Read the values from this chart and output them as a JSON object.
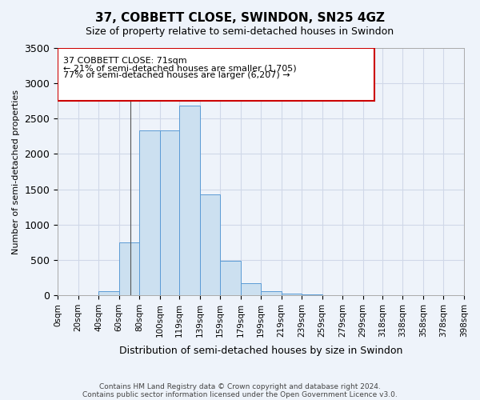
{
  "title": "37, COBBETT CLOSE, SWINDON, SN25 4GZ",
  "subtitle": "Size of property relative to semi-detached houses in Swindon",
  "xlabel": "Distribution of semi-detached houses by size in Swindon",
  "ylabel": "Number of semi-detached properties",
  "property_size": 71,
  "property_label": "37 COBBETT CLOSE: 71sqm",
  "smaller_pct": "21%",
  "smaller_count": "1,705",
  "larger_pct": "77%",
  "larger_count": "6,207",
  "annotation_line1": "37 COBBETT CLOSE: 71sqm",
  "annotation_line2": "← 21% of semi-detached houses are smaller (1,705)",
  "annotation_line3": "77% of semi-detached houses are larger (6,207) →",
  "bin_edges": [
    0,
    20,
    40,
    60,
    80,
    100,
    119,
    139,
    159,
    179,
    199,
    219,
    239,
    259,
    279,
    299,
    318,
    338,
    358,
    378,
    398
  ],
  "bin_labels": [
    "0sqm",
    "20sqm",
    "40sqm",
    "60sqm",
    "80sqm",
    "100sqm",
    "119sqm",
    "139sqm",
    "159sqm",
    "179sqm",
    "199sqm",
    "219sqm",
    "239sqm",
    "259sqm",
    "279sqm",
    "299sqm",
    "318sqm",
    "338sqm",
    "358sqm",
    "378sqm",
    "398sqm"
  ],
  "counts": [
    0,
    5,
    60,
    750,
    2330,
    2330,
    2680,
    1430,
    490,
    175,
    60,
    20,
    10,
    5,
    3,
    2,
    1,
    1,
    0,
    0
  ],
  "bar_color": "#cce0f0",
  "bar_edge_color": "#5b9bd5",
  "grid_color": "#d0d8e8",
  "bg_color": "#eef3fa",
  "annotation_box_color": "#cc0000",
  "ylim": [
    0,
    3500
  ],
  "footnote1": "Contains HM Land Registry data © Crown copyright and database right 2024.",
  "footnote2": "Contains public sector information licensed under the Open Government Licence v3.0."
}
